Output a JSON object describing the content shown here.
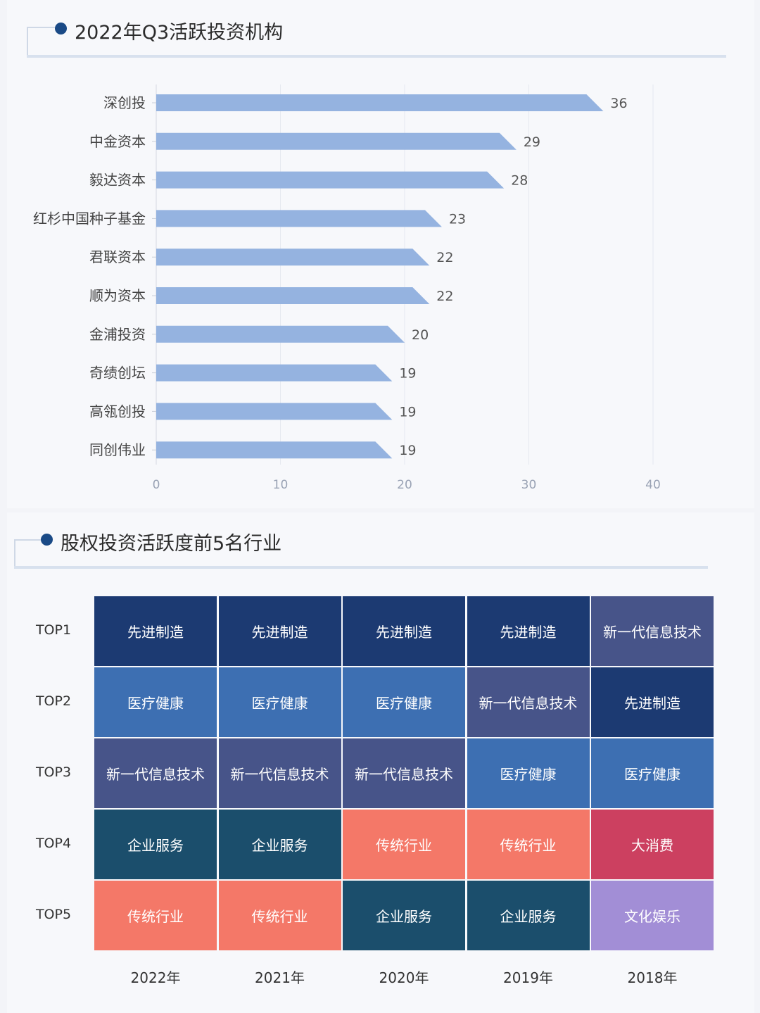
{
  "bar_section": {
    "title": "2022年Q3活跃投资机构"
  },
  "heatmap_section": {
    "title": "股权投资活跃度前5名行业"
  },
  "chart_data": [
    {
      "type": "bar",
      "orientation": "horizontal",
      "title": "2022年Q3活跃投资机构",
      "categories": [
        "深创投",
        "中金资本",
        "毅达资本",
        "红杉中国种子基金",
        "君联资本",
        "顺为资本",
        "金浦投资",
        "奇绩创坛",
        "高瓴创投",
        "同创伟业"
      ],
      "values": [
        36,
        29,
        28,
        23,
        22,
        22,
        20,
        19,
        19,
        19
      ],
      "xlim": [
        0,
        40
      ],
      "xticks": [
        "0",
        "10",
        "20",
        "30",
        "40"
      ],
      "grid": true,
      "bar_color": "#95b3e0"
    },
    {
      "type": "table",
      "title": "股权投资活跃度前5名行业",
      "rows": [
        "TOP1",
        "TOP2",
        "TOP3",
        "TOP4",
        "TOP5"
      ],
      "columns": [
        "2022年",
        "2021年",
        "2020年",
        "2019年",
        "2018年"
      ],
      "cells": [
        [
          "先进制造",
          "先进制造",
          "先进制造",
          "先进制造",
          "新一代信息技术"
        ],
        [
          "医疗健康",
          "医疗健康",
          "医疗健康",
          "新一代信息技术",
          "先进制造"
        ],
        [
          "新一代信息技术",
          "新一代信息技术",
          "新一代信息技术",
          "医疗健康",
          "医疗健康"
        ],
        [
          "企业服务",
          "企业服务",
          "传统行业",
          "传统行业",
          "大消费"
        ],
        [
          "传统行业",
          "传统行业",
          "企业服务",
          "企业服务",
          "文化娱乐"
        ]
      ],
      "category_colors": {
        "先进制造": "#1c3a72",
        "医疗健康": "#3d6fb2",
        "新一代信息技术": "#475489",
        "企业服务": "#1b4e6c",
        "传统行业": "#f47868",
        "大消费": "#cc4060",
        "文化娱乐": "#a28ed6"
      }
    }
  ]
}
